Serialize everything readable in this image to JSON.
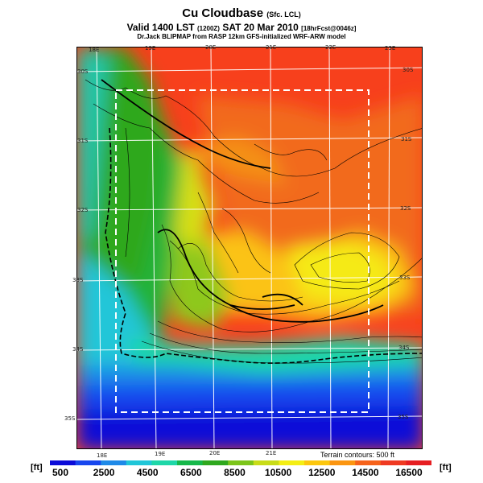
{
  "header": {
    "title": "Cu Cloudbase",
    "title_suffix": "(Sfc. LCL)",
    "valid_main": "Valid 1400 LST",
    "valid_code": "(1200Z)",
    "valid_date": "SAT 20 Mar 2010",
    "valid_extra": "[18hrFcst@0046z]",
    "source": "Dr.Jack BLIPMAP from RASP 12km GFS-initialized WRF-ARW model"
  },
  "axes": {
    "top_lon_ticks": [
      "18E",
      "19E",
      "20E",
      "21E",
      "22E",
      "23E"
    ],
    "bottom_lon_ticks": [
      "18E",
      "19E",
      "20E",
      "21E"
    ],
    "left_lat_ticks": [
      "30S",
      "31S",
      "32S",
      "33S",
      "34S",
      "35S"
    ],
    "right_lat_ticks": [
      "30S",
      "31S",
      "32S",
      "33S",
      "34S",
      "35S"
    ]
  },
  "terrain_note": "Terrain contours: 500 ft",
  "colorbar": {
    "unit": "[ft]",
    "labels": [
      "500",
      "2500",
      "4500",
      "6500",
      "8500",
      "10500",
      "12500",
      "14500",
      "16500"
    ],
    "colors": [
      "#0b0bd8",
      "#1746ee",
      "#1f8ae8",
      "#20c6d8",
      "#1ed7a8",
      "#16b84a",
      "#2fa81e",
      "#7cc51a",
      "#c8dc18",
      "#f4ee14",
      "#fcc70e",
      "#fb9510",
      "#f6621a",
      "#ef3a22",
      "#e61e22"
    ]
  }
}
